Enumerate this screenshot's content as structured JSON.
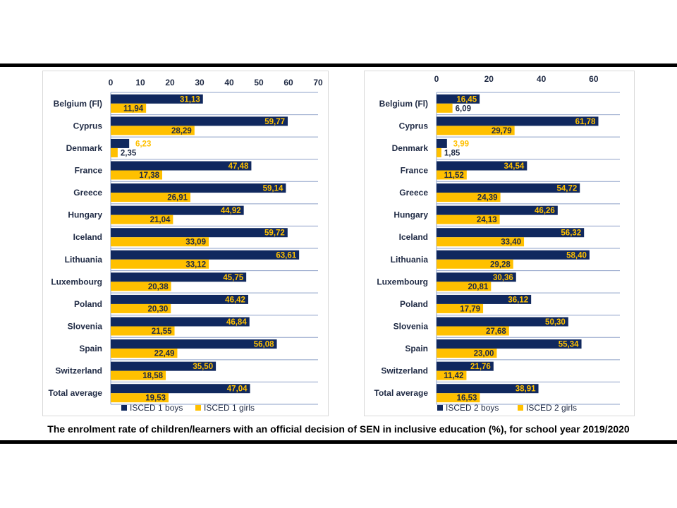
{
  "caption": "The enrolment rate of children/learners with an official decision of SEN in inclusive education (%),  for school year 2019/2020",
  "colors": {
    "boys": "#10285e",
    "girls": "#ffc000"
  },
  "chart_data": [
    {
      "type": "bar",
      "orientation": "horizontal",
      "categories": [
        "Belgium (Fl)",
        "Cyprus",
        "Denmark",
        "France",
        "Greece",
        "Hungary",
        "Iceland",
        "Lithuania",
        "Luxembourg",
        "Poland",
        "Slovenia",
        "Spain",
        "Switzerland",
        "Total average"
      ],
      "series": [
        {
          "name": "ISCED 1 boys",
          "values": [
            31.13,
            59.77,
            6.23,
            47.48,
            59.14,
            44.92,
            59.72,
            63.61,
            45.75,
            46.42,
            46.84,
            56.08,
            35.5,
            47.04
          ],
          "labels": [
            "31,13",
            "59,77",
            "6,23",
            "47,48",
            "59,14",
            "44,92",
            "59,72",
            "63,61",
            "45,75",
            "46,42",
            "46,84",
            "56,08",
            "35,50",
            "47,04"
          ]
        },
        {
          "name": "ISCED 1 girls",
          "values": [
            11.94,
            28.29,
            2.35,
            17.38,
            26.91,
            21.04,
            33.09,
            33.12,
            20.38,
            20.3,
            21.55,
            22.49,
            18.58,
            19.53
          ],
          "labels": [
            "11,94",
            "28,29",
            "2,35",
            "17,38",
            "26,91",
            "21,04",
            "33,09",
            "33,12",
            "20,38",
            "20,30",
            "21,55",
            "22,49",
            "18,58",
            "19,53"
          ]
        }
      ],
      "xlim": [
        0,
        70
      ],
      "xticks": [
        0,
        10,
        20,
        30,
        40,
        50,
        60,
        70
      ],
      "axis_position": "top",
      "legend_position": "bottom"
    },
    {
      "type": "bar",
      "orientation": "horizontal",
      "categories": [
        "Belgium (Fl)",
        "Cyprus",
        "Denmark",
        "France",
        "Greece",
        "Hungary",
        "Iceland",
        "Lithuania",
        "Luxembourg",
        "Poland",
        "Slovenia",
        "Spain",
        "Switzerland",
        "Total average"
      ],
      "series": [
        {
          "name": "ISCED 2 boys",
          "values": [
            16.45,
            61.78,
            3.99,
            34.54,
            54.72,
            46.26,
            56.32,
            58.4,
            30.36,
            36.12,
            50.3,
            55.34,
            21.76,
            38.91
          ],
          "labels": [
            "16,45",
            "61,78",
            "3,99",
            "34,54",
            "54,72",
            "46,26",
            "56,32",
            "58,40",
            "30,36",
            "36,12",
            "50,30",
            "55,34",
            "21,76",
            "38,91"
          ]
        },
        {
          "name": "ISCED 2 girls",
          "values": [
            6.09,
            29.79,
            1.85,
            11.52,
            24.39,
            24.13,
            33.4,
            29.28,
            20.81,
            17.79,
            27.68,
            23.0,
            11.42,
            16.53
          ],
          "labels": [
            "6,09",
            "29,79",
            "1,85",
            "11,52",
            "24,39",
            "24,13",
            "33,40",
            "29,28",
            "20,81",
            "17,79",
            "27,68",
            "23,00",
            "11,42",
            "16,53"
          ]
        }
      ],
      "xlim": [
        0,
        70
      ],
      "xticks": [
        0,
        20,
        40,
        60
      ],
      "axis_position": "top",
      "legend_position": "bottom"
    }
  ]
}
